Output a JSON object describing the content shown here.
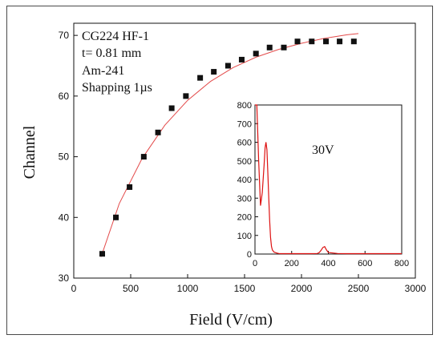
{
  "chart_data": [
    {
      "type": "scatter",
      "xlabel": "Field (V/cm)",
      "ylabel": "Channel",
      "xlim": [
        0,
        3000
      ],
      "ylim": [
        30,
        72
      ],
      "xticks": [
        "0",
        "500",
        "1000",
        "1500",
        "2000",
        "2500",
        "3000"
      ],
      "yticks": [
        "30",
        "40",
        "50",
        "60",
        "70"
      ],
      "annotations": [
        "CG224 HF-1",
        "t= 0.81 mm",
        "Am-241",
        "Shapping 1µs"
      ],
      "points": [
        {
          "x": 250,
          "y": 34
        },
        {
          "x": 370,
          "y": 40
        },
        {
          "x": 490,
          "y": 45
        },
        {
          "x": 615,
          "y": 50
        },
        {
          "x": 740,
          "y": 54
        },
        {
          "x": 860,
          "y": 58
        },
        {
          "x": 985,
          "y": 60
        },
        {
          "x": 1110,
          "y": 63
        },
        {
          "x": 1230,
          "y": 64
        },
        {
          "x": 1355,
          "y": 65
        },
        {
          "x": 1475,
          "y": 66
        },
        {
          "x": 1600,
          "y": 67
        },
        {
          "x": 1720,
          "y": 68
        },
        {
          "x": 1845,
          "y": 68
        },
        {
          "x": 1965,
          "y": 69
        },
        {
          "x": 2090,
          "y": 69
        },
        {
          "x": 2215,
          "y": 69
        },
        {
          "x": 2335,
          "y": 69
        },
        {
          "x": 2460,
          "y": 69
        }
      ],
      "fit": {
        "type": "line",
        "points": [
          [
            240,
            33.5
          ],
          [
            400,
            42.3
          ],
          [
            600,
            49.7
          ],
          [
            800,
            55.2
          ],
          [
            1000,
            59.3
          ],
          [
            1200,
            62.4
          ],
          [
            1400,
            64.7
          ],
          [
            1600,
            66.4
          ],
          [
            1800,
            67.7
          ],
          [
            2000,
            68.7
          ],
          [
            2200,
            69.5
          ],
          [
            2400,
            70.1
          ],
          [
            2500,
            70.3
          ]
        ]
      },
      "colors": {
        "points": "#111111",
        "fit": "#e34a4a"
      },
      "grid": false
    },
    {
      "type": "line",
      "annotation": "30V",
      "xlim": [
        0,
        800
      ],
      "ylim": [
        0,
        800
      ],
      "xticks": [
        "0",
        "200",
        "400",
        "600",
        "800"
      ],
      "yticks": [
        "0",
        "100",
        "200",
        "300",
        "400",
        "500",
        "600",
        "700",
        "800"
      ],
      "series": [
        {
          "x": [
            0,
            10,
            20,
            30,
            40,
            50,
            55,
            60,
            65,
            70,
            75,
            80,
            85,
            90,
            95,
            100,
            105,
            110,
            120,
            130,
            140,
            150,
            160,
            170,
            180,
            200,
            250,
            300,
            340,
            350,
            360,
            370,
            380,
            390,
            400,
            450,
            500,
            600,
            700,
            800
          ],
          "y": [
            800,
            800,
            500,
            260,
            330,
            480,
            570,
            600,
            560,
            440,
            300,
            180,
            90,
            40,
            22,
            15,
            10,
            8,
            5,
            3,
            2,
            2,
            2,
            2,
            2,
            2,
            2,
            2,
            3,
            8,
            20,
            35,
            40,
            22,
            8,
            3,
            2,
            2,
            2,
            2
          ]
        }
      ],
      "colors": {
        "line": "#dd1111"
      },
      "grid": false
    }
  ]
}
